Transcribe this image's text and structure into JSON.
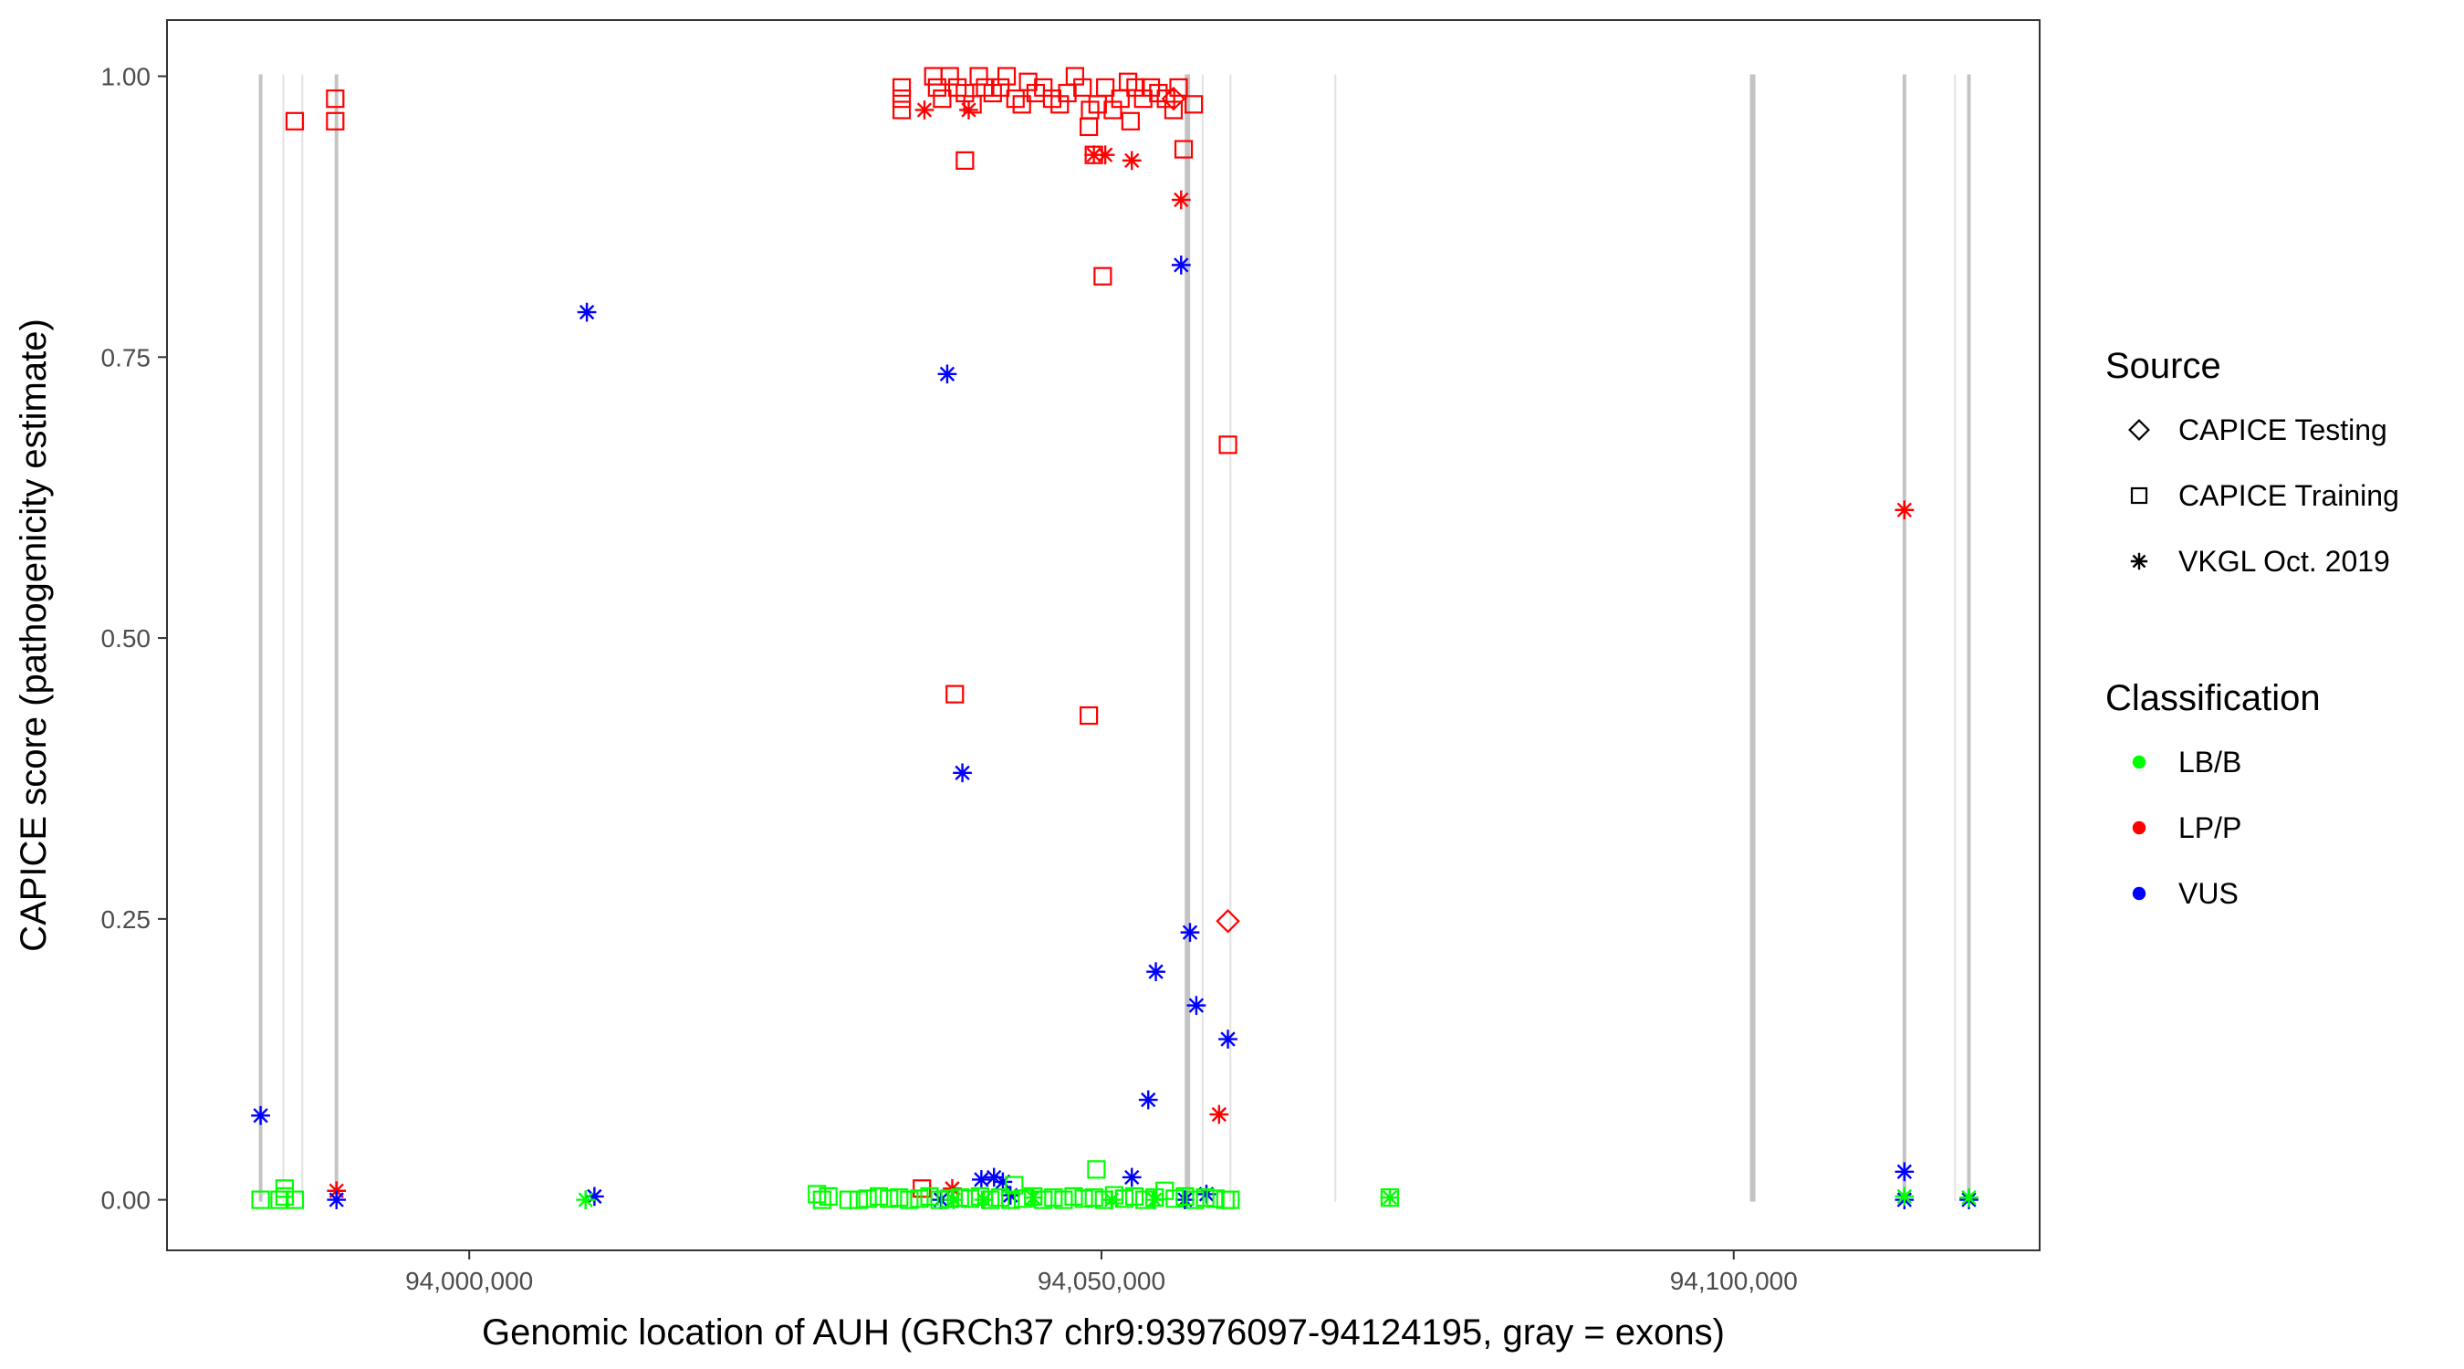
{
  "chart_data": {
    "type": "scatter",
    "title": "",
    "xlabel": "Genomic location of AUH (GRCh37 chr9:93976097-94124195, gray = exons)",
    "ylabel": "CAPICE score (pathogenicity estimate)",
    "xlim": [
      93976097,
      94124195
    ],
    "ylim": [
      -0.045,
      1.05
    ],
    "x_ticks": [
      94000000,
      94050000,
      94100000
    ],
    "x_tick_labels": [
      "94,000,000",
      "94,050,000",
      "94,100,000"
    ],
    "y_ticks": [
      0,
      0.25,
      0.5,
      0.75,
      1.0
    ],
    "y_tick_labels": [
      "0.00",
      "0.25",
      "0.50",
      "0.75",
      "1.00"
    ],
    "grid": false,
    "legend_placement": "right",
    "exons": [
      {
        "x": 93983500,
        "w": 2
      },
      {
        "x": 93985300,
        "w": 1
      },
      {
        "x": 93986800,
        "w": 1
      },
      {
        "x": 93989500,
        "w": 2
      },
      {
        "x": 94056800,
        "w": 3
      },
      {
        "x": 94058000,
        "w": 1
      },
      {
        "x": 94060200,
        "w": 1
      },
      {
        "x": 94068500,
        "w": 1
      },
      {
        "x": 94101500,
        "w": 3
      },
      {
        "x": 94113500,
        "w": 2
      },
      {
        "x": 94117500,
        "w": 1
      },
      {
        "x": 94118600,
        "w": 2
      }
    ],
    "legend": {
      "source": {
        "title": "Source",
        "items": [
          {
            "label": "CAPICE Testing",
            "shape": "diamond"
          },
          {
            "label": "CAPICE Training",
            "shape": "square"
          },
          {
            "label": "VKGL Oct. 2019",
            "shape": "asterisk"
          }
        ]
      },
      "classification": {
        "title": "Classification",
        "items": [
          {
            "label": "LB/B",
            "color": "#00ff00"
          },
          {
            "label": "LP/P",
            "color": "#ff0000"
          },
          {
            "label": "VUS",
            "color": "#0000ff"
          }
        ]
      }
    },
    "series": [
      {
        "class": "LP/P",
        "source": "CAPICE Training",
        "color": "#ff0000",
        "shape": "square",
        "points": [
          [
            93986200,
            0.96
          ],
          [
            93989400,
            0.98
          ],
          [
            93989400,
            0.96
          ],
          [
            94034200,
            0.99
          ],
          [
            94034200,
            0.98
          ],
          [
            94034200,
            0.97
          ],
          [
            94036700,
            1.0
          ],
          [
            94037000,
            0.99
          ],
          [
            94037400,
            0.98
          ],
          [
            94038000,
            1.0
          ],
          [
            94038600,
            0.99
          ],
          [
            94039200,
            0.985
          ],
          [
            94039800,
            0.975
          ],
          [
            94040300,
            1.0
          ],
          [
            94040800,
            0.99
          ],
          [
            94041400,
            0.985
          ],
          [
            94042000,
            0.99
          ],
          [
            94042500,
            1.0
          ],
          [
            94043200,
            0.98
          ],
          [
            94043700,
            0.975
          ],
          [
            94044200,
            0.995
          ],
          [
            94044800,
            0.985
          ],
          [
            94045400,
            0.99
          ],
          [
            94046100,
            0.98
          ],
          [
            94046700,
            0.975
          ],
          [
            94047300,
            0.985
          ],
          [
            94047900,
            1.0
          ],
          [
            94048500,
            0.99
          ],
          [
            94049100,
            0.97
          ],
          [
            94049700,
            0.975
          ],
          [
            94050300,
            0.99
          ],
          [
            94050900,
            0.97
          ],
          [
            94051500,
            0.98
          ],
          [
            94052100,
            0.995
          ],
          [
            94052700,
            0.99
          ],
          [
            94053300,
            0.98
          ],
          [
            94053900,
            0.99
          ],
          [
            94054500,
            0.985
          ],
          [
            94055100,
            0.98
          ],
          [
            94055700,
            0.97
          ],
          [
            94056100,
            0.99
          ],
          [
            94057300,
            0.975
          ],
          [
            94039200,
            0.925
          ],
          [
            94049000,
            0.955
          ],
          [
            94049400,
            0.93
          ],
          [
            94052300,
            0.96
          ],
          [
            94056500,
            0.935
          ],
          [
            94050100,
            0.822
          ],
          [
            94060000,
            0.672
          ],
          [
            94038400,
            0.45
          ],
          [
            94049000,
            0.431
          ],
          [
            94035800,
            0.01
          ]
        ]
      },
      {
        "class": "LP/P",
        "source": "VKGL Oct. 2019",
        "color": "#ff0000",
        "shape": "asterisk",
        "points": [
          [
            94036000,
            0.97
          ],
          [
            94039500,
            0.97
          ],
          [
            94049400,
            0.93
          ],
          [
            94050300,
            0.93
          ],
          [
            94052400,
            0.925
          ],
          [
            94056300,
            0.89
          ],
          [
            94059300,
            0.076
          ],
          [
            94113500,
            0.614
          ],
          [
            93989500,
            0.008
          ],
          [
            94038200,
            0.01
          ]
        ]
      },
      {
        "class": "LP/P",
        "source": "CAPICE Testing",
        "color": "#ff0000",
        "shape": "diamond",
        "points": [
          [
            94055700,
            0.98
          ],
          [
            94060000,
            0.248
          ]
        ]
      },
      {
        "class": "VUS",
        "source": "VKGL Oct. 2019",
        "color": "#0000ff",
        "shape": "asterisk",
        "points": [
          [
            93983500,
            0.075
          ],
          [
            94009300,
            0.79
          ],
          [
            94037800,
            0.735
          ],
          [
            94039000,
            0.38
          ],
          [
            94056300,
            0.832
          ],
          [
            94057000,
            0.238
          ],
          [
            94054300,
            0.203
          ],
          [
            94057500,
            0.173
          ],
          [
            94060000,
            0.143
          ],
          [
            94053700,
            0.089
          ],
          [
            94113500,
            0.025
          ],
          [
            94052400,
            0.02
          ],
          [
            94040500,
            0.018
          ],
          [
            94041500,
            0.02
          ],
          [
            94042200,
            0.016
          ],
          [
            94042800,
            0.004
          ],
          [
            93989500,
            0.0
          ],
          [
            94009900,
            0.003
          ],
          [
            94037300,
            0.0
          ],
          [
            94056600,
            0.0
          ],
          [
            94058300,
            0.005
          ],
          [
            94113500,
            0.0
          ],
          [
            94118600,
            0.0
          ]
        ]
      },
      {
        "class": "LB/B",
        "source": "CAPICE Training",
        "color": "#00ff00",
        "shape": "square",
        "points": [
          [
            93983500,
            0.0
          ],
          [
            93985000,
            0.0
          ],
          [
            93985400,
            0.003
          ],
          [
            93985400,
            0.01
          ],
          [
            93986200,
            0.0
          ],
          [
            94027500,
            0.005
          ],
          [
            94027900,
            0.0
          ],
          [
            94028400,
            0.003
          ],
          [
            94030000,
            0.0
          ],
          [
            94030800,
            0.0
          ],
          [
            94031500,
            0.001
          ],
          [
            94032400,
            0.003
          ],
          [
            94033200,
            0.001
          ],
          [
            94034000,
            0.002
          ],
          [
            94034800,
            0.0
          ],
          [
            94035600,
            0.001
          ],
          [
            94036400,
            0.003
          ],
          [
            94037200,
            0.0
          ],
          [
            94038000,
            0.001
          ],
          [
            94038800,
            0.002
          ],
          [
            94039600,
            0.001
          ],
          [
            94040400,
            0.003
          ],
          [
            94041200,
            0.0
          ],
          [
            94042000,
            0.002
          ],
          [
            94042800,
            0.0
          ],
          [
            94043100,
            0.013
          ],
          [
            94043800,
            0.001
          ],
          [
            94044600,
            0.003
          ],
          [
            94045400,
            0.0
          ],
          [
            94046200,
            0.002
          ],
          [
            94047000,
            0.0
          ],
          [
            94047800,
            0.003
          ],
          [
            94048600,
            0.001
          ],
          [
            94049400,
            0.002
          ],
          [
            94049600,
            0.027
          ],
          [
            94050200,
            0.0
          ],
          [
            94051000,
            0.004
          ],
          [
            94051800,
            0.001
          ],
          [
            94052600,
            0.003
          ],
          [
            94053400,
            0.0
          ],
          [
            94054200,
            0.002
          ],
          [
            94055000,
            0.008
          ],
          [
            94055800,
            0.001
          ],
          [
            94056600,
            0.003
          ],
          [
            94057400,
            0.0
          ],
          [
            94058200,
            0.002
          ],
          [
            94059000,
            0.001
          ],
          [
            94059800,
            0.0
          ],
          [
            94060200,
            0.0
          ],
          [
            94072800,
            0.002
          ]
        ]
      },
      {
        "class": "LB/B",
        "source": "VKGL Oct. 2019",
        "color": "#00ff00",
        "shape": "asterisk",
        "points": [
          [
            94009200,
            0.0
          ],
          [
            94038300,
            0.0
          ],
          [
            94040700,
            0.0
          ],
          [
            94044600,
            0.002
          ],
          [
            94050800,
            0.0
          ],
          [
            94054200,
            0.0
          ],
          [
            94072800,
            0.002
          ],
          [
            94113500,
            0.003
          ],
          [
            94118600,
            0.002
          ]
        ]
      }
    ]
  }
}
